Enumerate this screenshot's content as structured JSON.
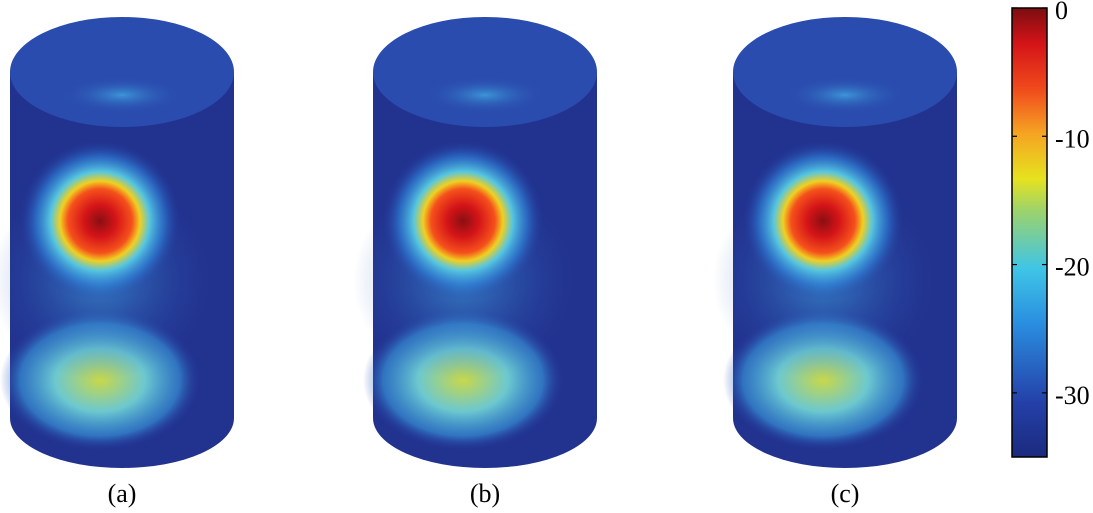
{
  "chart_data": {
    "type": "heatmap",
    "panels": [
      "(a)",
      "(b)",
      "(c)"
    ],
    "colorbar": {
      "lim": [
        -35,
        0
      ],
      "ticks": [
        0,
        -10,
        -20,
        -30
      ]
    }
  }
}
